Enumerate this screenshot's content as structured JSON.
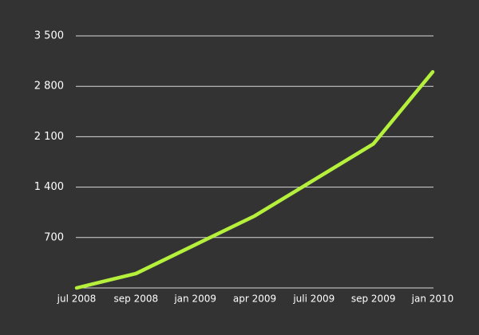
{
  "chart_data": {
    "type": "line",
    "categories": [
      "jul 2008",
      "sep 2008",
      "jan 2009",
      "apr 2009",
      "juli 2009",
      "sep 2009",
      "jan 2010"
    ],
    "series": [
      {
        "color": "#b4f03c",
        "values": [
          0,
          200,
          600,
          1000,
          1500,
          2000,
          3000
        ]
      }
    ],
    "ylim": [
      0,
      3500
    ],
    "yticks": [
      700,
      {
        "value": 1400,
        "label": "1 400"
      },
      {
        "value": 2100,
        "label": "2 100"
      },
      {
        "value": 2800,
        "label": "2 800"
      },
      {
        "value": 3500,
        "label": "3 500"
      }
    ],
    "grid": true
  }
}
